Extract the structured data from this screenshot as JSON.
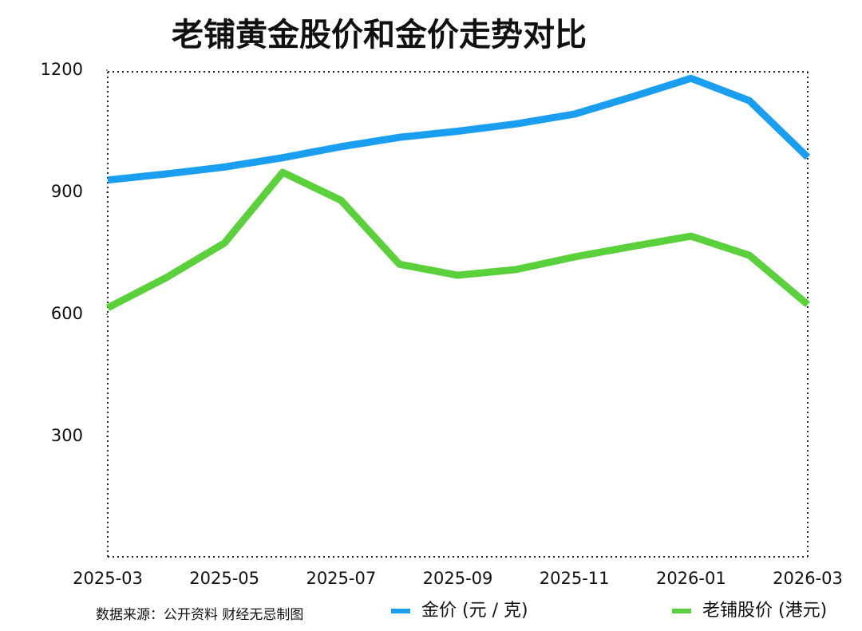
{
  "chart_data": {
    "type": "line",
    "title": "老铺黄金股价和金价走势对比",
    "source": "数据来源：公开资料  财经无忌制图",
    "categories": [
      "2025-03",
      null,
      "2025-05",
      null,
      "2025-07",
      null,
      "2025-09",
      null,
      "2025-11",
      null,
      "2026-01",
      null,
      "2026-03"
    ],
    "series": [
      {
        "name": "金价 (元 / 克)",
        "color": "#1a9ff0",
        "values": [
          930,
          945,
          962,
          985,
          1012,
          1035,
          1050,
          1068,
          1092,
          1135,
          1180,
          1125,
          986
        ]
      },
      {
        "name": "老铺股价 (港元)",
        "color": "#5ad13b",
        "values": [
          616,
          690,
          775,
          949,
          880,
          723,
          696,
          710,
          741,
          767,
          792,
          745,
          624
        ]
      }
    ],
    "ylim": [
      0,
      1200
    ],
    "yticks": [
      300,
      600,
      900,
      1200
    ],
    "legend": "bottom"
  }
}
